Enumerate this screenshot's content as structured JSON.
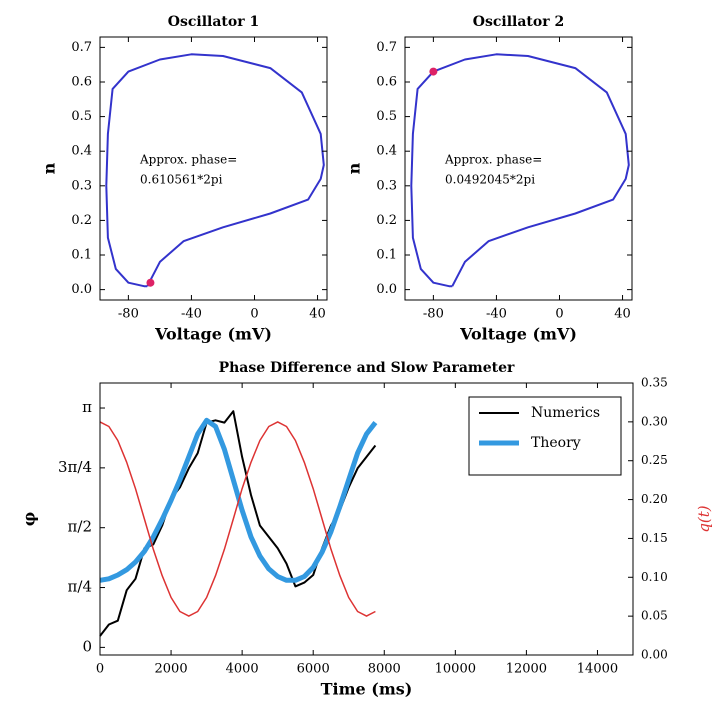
{
  "chart_data": [
    {
      "type": "line",
      "title": "Oscillator 1",
      "xlabel": "Voltage (mV)",
      "ylabel": "n",
      "x": [
        -68,
        -60,
        -45,
        -20,
        10,
        34,
        42,
        44,
        42,
        30,
        10,
        -20,
        -40,
        -60,
        -80,
        -90,
        -93,
        -94,
        -93,
        -88,
        -80,
        -70,
        -68
      ],
      "values": [
        0.01,
        0.08,
        0.14,
        0.18,
        0.22,
        0.26,
        0.32,
        0.36,
        0.45,
        0.57,
        0.64,
        0.675,
        0.68,
        0.665,
        0.63,
        0.58,
        0.45,
        0.3,
        0.15,
        0.06,
        0.02,
        0.01,
        0.01
      ],
      "color": "#3333cc",
      "marker": {
        "x": -66,
        "y": 0.02,
        "color": "#dd2266"
      },
      "annotation": [
        "Approx. phase=",
        "0.610561*2pi"
      ],
      "xlim": [
        -98,
        46
      ],
      "xticks": [
        -80,
        -40,
        0,
        40
      ],
      "ylim": [
        -0.03,
        0.73
      ],
      "yticks": [
        {
          "value": 0,
          "label": "0.0"
        },
        {
          "value": 0.1,
          "label": "0.1"
        },
        {
          "value": 0.2,
          "label": "0.2"
        },
        {
          "value": 0.3,
          "label": "0.3"
        },
        {
          "value": 0.4,
          "label": "0.4"
        },
        {
          "value": 0.5,
          "label": "0.5"
        },
        {
          "value": 0.6,
          "label": "0.6"
        },
        {
          "value": 0.7,
          "label": "0.7"
        }
      ]
    },
    {
      "type": "line",
      "title": "Oscillator 2",
      "xlabel": "Voltage (mV)",
      "ylabel": "n",
      "x": [
        -68,
        -60,
        -45,
        -20,
        10,
        34,
        42,
        44,
        42,
        30,
        10,
        -20,
        -40,
        -60,
        -80,
        -90,
        -93,
        -94,
        -93,
        -88,
        -80,
        -70,
        -68
      ],
      "values": [
        0.01,
        0.08,
        0.14,
        0.18,
        0.22,
        0.26,
        0.32,
        0.36,
        0.45,
        0.57,
        0.64,
        0.675,
        0.68,
        0.665,
        0.63,
        0.58,
        0.45,
        0.3,
        0.15,
        0.06,
        0.02,
        0.01,
        0.01
      ],
      "color": "#3333cc",
      "marker": {
        "x": -80,
        "y": 0.63,
        "color": "#dd2266"
      },
      "annotation": [
        "Approx. phase=",
        "0.0492045*2pi"
      ],
      "xlim": [
        -98,
        46
      ],
      "xticks": [
        -80,
        -40,
        0,
        40
      ],
      "ylim": [
        -0.03,
        0.73
      ],
      "yticks": [
        {
          "value": 0,
          "label": "0.0"
        },
        {
          "value": 0.1,
          "label": "0.1"
        },
        {
          "value": 0.2,
          "label": "0.2"
        },
        {
          "value": 0.3,
          "label": "0.3"
        },
        {
          "value": 0.4,
          "label": "0.4"
        },
        {
          "value": 0.5,
          "label": "0.5"
        },
        {
          "value": 0.6,
          "label": "0.6"
        },
        {
          "value": 0.7,
          "label": "0.7"
        }
      ]
    },
    {
      "type": "line",
      "title": "Phase Difference and Slow Parameter",
      "xlabel": "Time (ms)",
      "ylabel": "φ",
      "y2label": "q(t)",
      "x": [
        0,
        250,
        500,
        750,
        1000,
        1250,
        1500,
        1750,
        2000,
        2250,
        2500,
        2750,
        3000,
        3250,
        3500,
        3750,
        4000,
        4250,
        4500,
        4750,
        5000,
        5250,
        5500,
        5750,
        6000,
        6250,
        6500,
        6750,
        7000,
        7250,
        7500,
        7750
      ],
      "series": [
        {
          "name": "Numerics",
          "color": "#000000",
          "width": 2,
          "values": [
            0.15,
            0.3,
            0.35,
            0.75,
            0.9,
            1.3,
            1.35,
            1.6,
            1.95,
            2.1,
            2.35,
            2.55,
            2.95,
            2.98,
            2.95,
            3.1,
            2.5,
            2.0,
            1.6,
            1.45,
            1.3,
            1.1,
            0.8,
            0.85,
            0.95,
            1.3,
            1.6,
            1.8,
            2.1,
            2.35,
            2.5,
            2.65
          ]
        },
        {
          "name": "Theory",
          "color": "#3399e0",
          "width": 5,
          "values": [
            0.88,
            0.9,
            0.95,
            1.02,
            1.12,
            1.26,
            1.45,
            1.68,
            1.93,
            2.2,
            2.5,
            2.8,
            2.98,
            2.9,
            2.6,
            2.2,
            1.8,
            1.45,
            1.2,
            1.03,
            0.93,
            0.88,
            0.88,
            0.93,
            1.05,
            1.25,
            1.52,
            1.85,
            2.2,
            2.55,
            2.8,
            2.95
          ]
        },
        {
          "color": "#dd3333",
          "width": 1.5,
          "axis": "y2",
          "values": [
            0.3,
            0.294,
            0.276,
            0.248,
            0.214,
            0.175,
            0.136,
            0.102,
            0.074,
            0.056,
            0.05,
            0.056,
            0.074,
            0.102,
            0.136,
            0.175,
            0.214,
            0.248,
            0.276,
            0.294,
            0.3,
            0.294,
            0.276,
            0.248,
            0.214,
            0.175,
            0.136,
            0.102,
            0.074,
            0.056,
            0.05,
            0.056
          ]
        }
      ],
      "legend": "upper right",
      "xlim": [
        0,
        15000
      ],
      "xticks": [
        0,
        2000,
        4000,
        6000,
        8000,
        10000,
        12000,
        14000
      ],
      "ylim": [
        -0.1,
        3.47
      ],
      "yticks": [
        0,
        {
          "value": 0.7854,
          "label": "π/4"
        },
        {
          "value": 1.5708,
          "label": "π/2"
        },
        {
          "value": 2.3562,
          "label": "3π/4"
        },
        {
          "value": 3.1416,
          "label": "π"
        }
      ],
      "y2lim": [
        0,
        0.35
      ],
      "y2ticks": [
        {
          "value": 0,
          "label": "0.00"
        },
        0.05,
        {
          "value": 0.1,
          "label": "0.10"
        },
        0.15,
        {
          "value": 0.2,
          "label": "0.20"
        },
        0.25,
        {
          "value": 0.3,
          "label": "0.30"
        },
        0.35
      ]
    }
  ]
}
